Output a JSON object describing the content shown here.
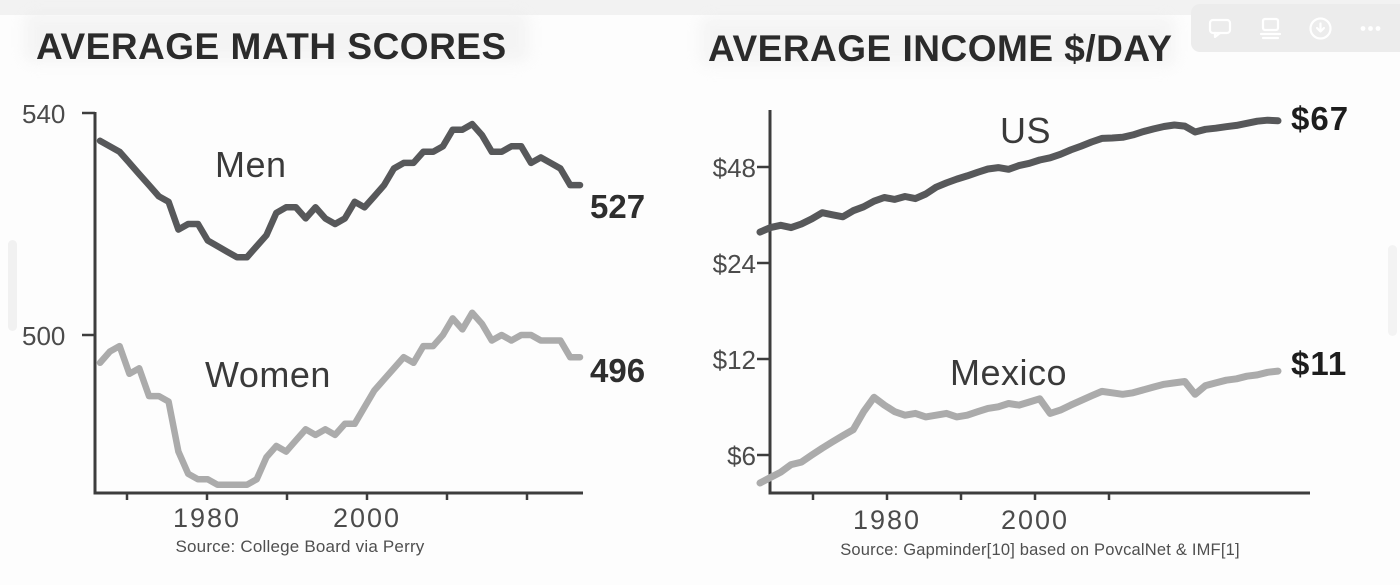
{
  "page": {
    "background": "#fdfdfd"
  },
  "toolbar": {
    "icons": [
      "comment-icon",
      "screen-with-lines-icon",
      "download-icon",
      "more-options-icon"
    ],
    "background": "#ececec",
    "icon_color": "#ffffff"
  },
  "colors": {
    "dark_series": "#57585a",
    "light_series": "#ababab",
    "axis": "#3d3d3d",
    "title_text": "#2b2b2b"
  },
  "chart_data": [
    {
      "type": "line",
      "title": "AVERAGE MATH SCORES",
      "source": "Source: College Board via Perry",
      "x_start_year": 1967,
      "x_end_year": 2016,
      "xaxis": {
        "ticks": [
          1970,
          1980,
          1990,
          2000,
          2010,
          2020
        ],
        "labeled_ticks": [
          "1980",
          "2000"
        ]
      },
      "yaxis": {
        "scale": "linear",
        "ticks": [
          540,
          500
        ],
        "tick_labels": [
          "540",
          "500"
        ],
        "ylim": [
          470,
          545
        ]
      },
      "grid": false,
      "legend": "inline-labels",
      "series": [
        {
          "name": "Men",
          "end_label": "527",
          "color": "#57585a",
          "values": [
            535,
            534,
            533,
            531,
            529,
            527,
            525,
            524,
            519,
            520,
            520,
            517,
            516,
            515,
            514,
            514,
            516,
            518,
            522,
            523,
            523,
            521,
            523,
            521,
            520,
            521,
            524,
            523,
            525,
            527,
            530,
            531,
            531,
            533,
            533,
            534,
            537,
            537,
            538,
            536,
            533,
            533,
            534,
            534,
            531,
            532,
            531,
            530,
            527,
            527
          ]
        },
        {
          "name": "Women",
          "end_label": "496",
          "color": "#ababab",
          "values": [
            495,
            497,
            498,
            493,
            494,
            489,
            489,
            488,
            479,
            475,
            474,
            474,
            473,
            473,
            473,
            473,
            474,
            478,
            480,
            479,
            481,
            483,
            482,
            483,
            482,
            484,
            484,
            487,
            490,
            492,
            494,
            496,
            495,
            498,
            498,
            500,
            503,
            501,
            504,
            502,
            499,
            500,
            499,
            500,
            500,
            499,
            499,
            499,
            496,
            496
          ]
        }
      ]
    },
    {
      "type": "line",
      "title": "AVERAGE INCOME $/DAY",
      "source": "Source: Gapminder[10] based on PovcalNet & IMF[1]",
      "x_start_year": 1967,
      "x_end_year": 2017,
      "xaxis": {
        "ticks": [
          1970,
          1980,
          1990,
          2000,
          2010
        ],
        "labeled_ticks": [
          "1980",
          "2000"
        ]
      },
      "yaxis": {
        "scale": "log2",
        "ticks": [
          48,
          24,
          12,
          6
        ],
        "tick_labels": [
          "$48",
          "$24",
          "$12",
          "$6"
        ],
        "ylim": [
          4.5,
          75
        ]
      },
      "grid": false,
      "legend": "inline-labels",
      "series": [
        {
          "name": "US",
          "end_label": "$67",
          "color": "#57585a",
          "values": [
            30,
            31,
            31.5,
            31,
            31.8,
            33,
            34.5,
            34,
            33.5,
            35,
            36,
            37.5,
            38.5,
            38,
            38.8,
            38.2,
            39.5,
            41.5,
            42.8,
            44,
            45,
            46.2,
            47.3,
            47.8,
            47.2,
            48.5,
            49.3,
            50.5,
            51.3,
            52.6,
            54.3,
            55.8,
            57.5,
            59,
            59.2,
            59.5,
            60.5,
            62,
            63.2,
            64.3,
            65,
            64.5,
            61.8,
            63,
            63.5,
            64.2,
            64.8,
            65.8,
            66.8,
            67.3,
            67
          ]
        },
        {
          "name": "Mexico",
          "end_label": "$11",
          "color": "#ababab",
          "values": [
            4.9,
            5.1,
            5.3,
            5.6,
            5.7,
            6.0,
            6.3,
            6.6,
            6.9,
            7.2,
            8.2,
            9.1,
            8.6,
            8.2,
            8.0,
            8.1,
            7.9,
            8.0,
            8.1,
            7.9,
            8.0,
            8.2,
            8.4,
            8.5,
            8.7,
            8.6,
            8.8,
            9.0,
            8.1,
            8.3,
            8.6,
            8.9,
            9.2,
            9.5,
            9.4,
            9.3,
            9.4,
            9.6,
            9.8,
            10.0,
            10.1,
            10.2,
            9.3,
            9.9,
            10.1,
            10.3,
            10.4,
            10.6,
            10.7,
            10.9,
            11
          ]
        }
      ]
    }
  ]
}
